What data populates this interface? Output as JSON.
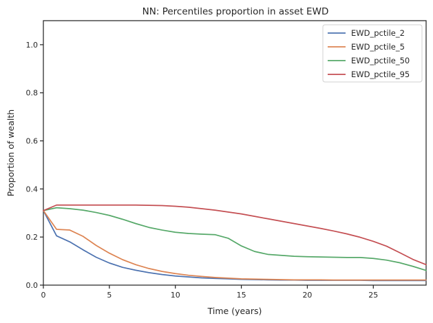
{
  "chart_data": {
    "type": "line",
    "title": "NN: Percentiles proportion in asset EWD",
    "xlabel": "Time (years)",
    "ylabel": "Proportion of wealth",
    "xlim": [
      0,
      29
    ],
    "ylim": [
      0,
      1.1
    ],
    "xticks": [
      0,
      5,
      10,
      15,
      20,
      25
    ],
    "yticks": [
      0.0,
      0.2,
      0.4,
      0.6,
      0.8,
      1.0
    ],
    "xtick_labels": [
      "0",
      "5",
      "10",
      "15",
      "20",
      "25"
    ],
    "ytick_labels": [
      "0.0",
      "0.2",
      "0.4",
      "0.6",
      "0.8",
      "1.0"
    ],
    "grid": false,
    "legend_position": "top-right",
    "x": [
      0,
      1,
      2,
      3,
      4,
      5,
      6,
      7,
      8,
      9,
      10,
      11,
      12,
      13,
      14,
      15,
      16,
      17,
      18,
      19,
      20,
      21,
      22,
      23,
      24,
      25,
      26,
      27,
      28,
      29
    ],
    "series": [
      {
        "name": "EWD_pctile_2",
        "color": "#4c72b0",
        "values": [
          0.31,
          0.205,
          0.18,
          0.147,
          0.116,
          0.092,
          0.074,
          0.062,
          0.052,
          0.044,
          0.038,
          0.034,
          0.03,
          0.028,
          0.026,
          0.024,
          0.023,
          0.022,
          0.021,
          0.021,
          0.02,
          0.02,
          0.02,
          0.02,
          0.02,
          0.019,
          0.019,
          0.019,
          0.019,
          0.019
        ]
      },
      {
        "name": "EWD_pctile_5",
        "color": "#dd8452",
        "values": [
          0.31,
          0.232,
          0.229,
          0.203,
          0.165,
          0.133,
          0.106,
          0.085,
          0.069,
          0.057,
          0.048,
          0.041,
          0.036,
          0.032,
          0.029,
          0.026,
          0.025,
          0.024,
          0.023,
          0.022,
          0.022,
          0.022,
          0.021,
          0.021,
          0.021,
          0.021,
          0.021,
          0.021,
          0.021,
          0.021
        ]
      },
      {
        "name": "EWD_pctile_50",
        "color": "#55a868",
        "values": [
          0.31,
          0.322,
          0.318,
          0.312,
          0.302,
          0.29,
          0.274,
          0.256,
          0.24,
          0.229,
          0.22,
          0.215,
          0.212,
          0.21,
          0.195,
          0.163,
          0.14,
          0.128,
          0.124,
          0.12,
          0.118,
          0.117,
          0.116,
          0.115,
          0.115,
          0.111,
          0.104,
          0.093,
          0.078,
          0.061
        ]
      },
      {
        "name": "EWD_pctile_95",
        "color": "#c44e52",
        "values": [
          0.31,
          0.333,
          0.333,
          0.333,
          0.333,
          0.333,
          0.333,
          0.333,
          0.332,
          0.331,
          0.328,
          0.324,
          0.318,
          0.312,
          0.304,
          0.296,
          0.286,
          0.276,
          0.266,
          0.256,
          0.246,
          0.236,
          0.225,
          0.213,
          0.199,
          0.182,
          0.162,
          0.135,
          0.107,
          0.085
        ]
      }
    ]
  }
}
